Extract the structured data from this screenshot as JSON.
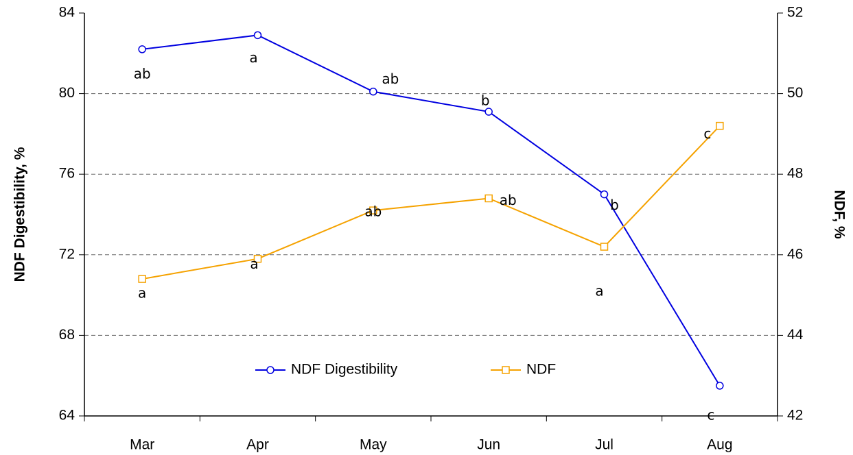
{
  "chart_data": {
    "type": "line",
    "categories": [
      "Mar",
      "Apr",
      "May",
      "Jun",
      "Jul",
      "Aug"
    ],
    "y_label": "NDF Digestibility, %",
    "y2_label": "NDF, %",
    "ylim": [
      64,
      84
    ],
    "yticks": [
      64,
      68,
      72,
      76,
      80,
      84
    ],
    "y2lim": [
      42,
      52
    ],
    "y2ticks": [
      42,
      44,
      46,
      48,
      50,
      52
    ],
    "grid": true,
    "legend": "bottom",
    "series": [
      {
        "name": "NDF Digestibility",
        "color": "#0000e0",
        "marker": "circle",
        "values": [
          82.2,
          82.9,
          80.1,
          79.1,
          75.0,
          65.5
        ],
        "letters": [
          "ab",
          "a",
          "ab",
          "b",
          "b",
          "c"
        ]
      },
      {
        "name": "NDF",
        "color": "#f5a200",
        "marker": "square",
        "axis": "y2",
        "values": [
          45.4,
          45.9,
          47.1,
          47.4,
          46.2,
          49.2
        ],
        "letters": [
          "a",
          "a",
          "ab",
          "ab",
          "a",
          "c"
        ]
      }
    ]
  }
}
